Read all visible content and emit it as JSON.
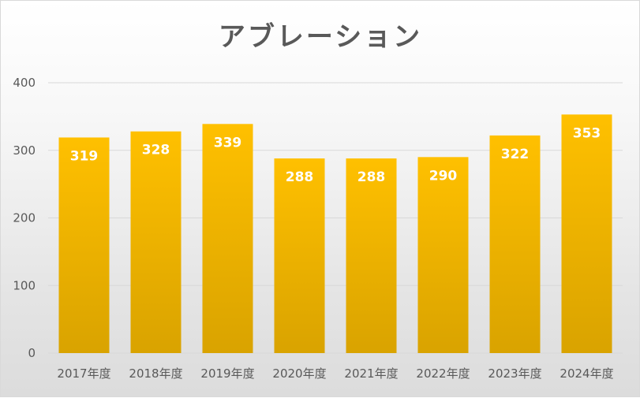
{
  "chart_data": {
    "type": "bar",
    "title": "アブレーション",
    "categories": [
      "2017年度",
      "2018年度",
      "2019年度",
      "2020年度",
      "2021年度",
      "2022年度",
      "2023年度",
      "2024年度"
    ],
    "values": [
      319,
      328,
      339,
      288,
      288,
      290,
      322,
      353
    ],
    "data_labels": [
      "319",
      "328",
      "339",
      "288",
      "288",
      "290",
      "322",
      "353"
    ],
    "yticks": [
      "0",
      "100",
      "200",
      "300",
      "400"
    ],
    "ylim": [
      0,
      400
    ],
    "grid": true,
    "legend": "none",
    "bar_color_top": "#ffc000",
    "bar_color_bottom": "#d9a300"
  }
}
